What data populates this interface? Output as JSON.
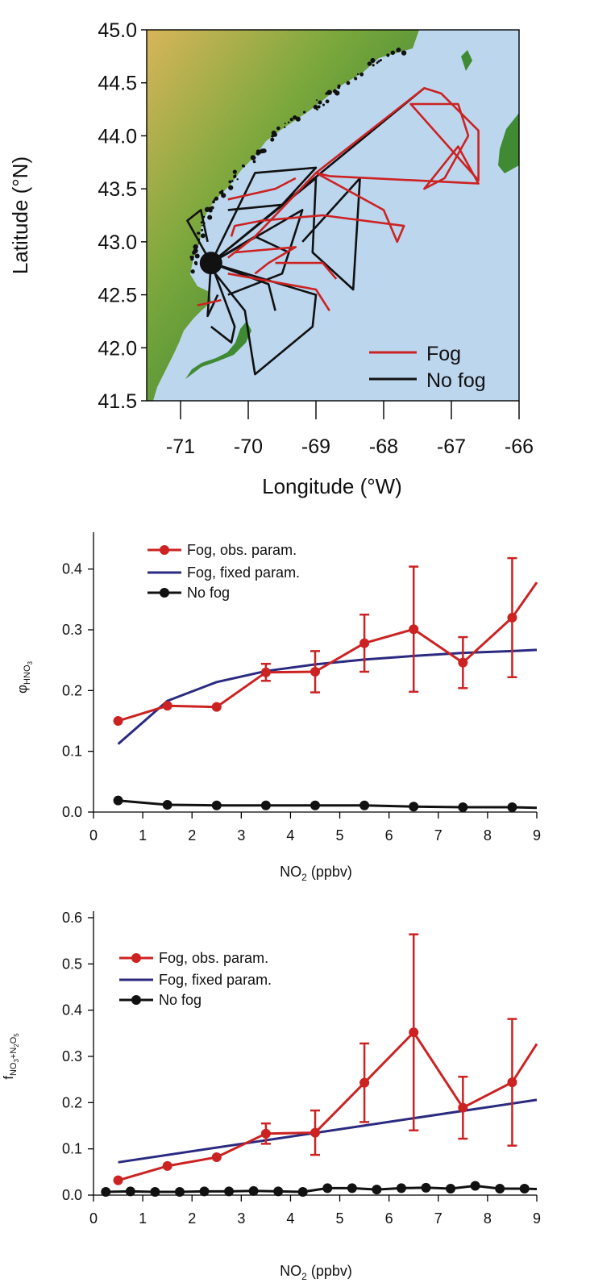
{
  "colors": {
    "fog": "#cc2222",
    "fog_fixed": "#2a2a80",
    "nofog": "#111111",
    "ocean": "#bcd6ee",
    "land_low": "#3f8a33",
    "land_mid": "#7da83d",
    "land_high": "#d8b55a"
  },
  "chart_data": [
    {
      "type": "map",
      "xlabel": "Longitude (°W)",
      "ylabel": "Latitude (°N)",
      "xlim": [
        -71.5,
        -66
      ],
      "ylim": [
        41.5,
        45.0
      ],
      "x_ticks": [
        "-71",
        "-70",
        "-69",
        "-68",
        "-67",
        "-66"
      ],
      "y_ticks": [
        "45.0",
        "44.5",
        "44.0",
        "43.5",
        "43.0",
        "42.5",
        "42.0",
        "41.5"
      ],
      "legend": {
        "placement": "bottom-right",
        "entries": [
          "Fog",
          "No fog"
        ]
      },
      "series": [
        {
          "name": "Fog",
          "tracks": [
            [
              [
                -69.0,
                43.65
              ],
              [
                -67.4,
                44.45
              ],
              [
                -67.15,
                44.4
              ],
              [
                -66.6,
                44.05
              ],
              [
                -66.6,
                43.58
              ],
              [
                -67.6,
                44.3
              ],
              [
                -66.9,
                44.3
              ],
              [
                -66.75,
                44.0
              ],
              [
                -67.1,
                43.6
              ],
              [
                -67.4,
                43.5
              ],
              [
                -66.9,
                43.9
              ],
              [
                -66.6,
                43.55
              ],
              [
                -68.8,
                43.62
              ],
              [
                -69.0,
                43.65
              ]
            ],
            [
              [
                -69.0,
                43.65
              ],
              [
                -68.0,
                43.3
              ],
              [
                -67.8,
                43.0
              ],
              [
                -67.7,
                43.15
              ],
              [
                -68.9,
                43.25
              ],
              [
                -69.8,
                43.2
              ],
              [
                -70.2,
                43.15
              ],
              [
                -70.25,
                43.05
              ]
            ],
            [
              [
                -69.0,
                43.65
              ],
              [
                -69.9,
                43.05
              ],
              [
                -70.3,
                42.85
              ]
            ],
            [
              [
                -70.2,
                42.9
              ],
              [
                -69.3,
                42.95
              ],
              [
                -69.7,
                42.8
              ],
              [
                -69.9,
                42.7
              ]
            ],
            [
              [
                -69.6,
                42.8
              ],
              [
                -68.9,
                42.8
              ],
              [
                -68.7,
                42.65
              ]
            ],
            [
              [
                -70.3,
                42.7
              ],
              [
                -69.0,
                42.55
              ],
              [
                -68.8,
                42.35
              ]
            ],
            [
              [
                -70.4,
                42.45
              ],
              [
                -70.75,
                42.4
              ]
            ],
            [
              [
                -70.3,
                43.4
              ],
              [
                -69.6,
                43.5
              ],
              [
                -69.3,
                43.6
              ]
            ]
          ]
        },
        {
          "name": "No fog",
          "tracks": [
            [
              [
                -70.55,
                42.8
              ],
              [
                -67.4,
                44.45
              ]
            ],
            [
              [
                -70.55,
                42.8
              ],
              [
                -69.9,
                43.65
              ],
              [
                -69.0,
                43.7
              ],
              [
                -69.5,
                43.35
              ],
              [
                -70.3,
                43.3
              ]
            ],
            [
              [
                -70.55,
                42.8
              ],
              [
                -69.0,
                43.6
              ],
              [
                -69.05,
                42.9
              ],
              [
                -68.45,
                42.55
              ],
              [
                -68.35,
                43.6
              ],
              [
                -69.2,
                43.0
              ]
            ],
            [
              [
                -70.55,
                42.8
              ],
              [
                -69.2,
                43.3
              ],
              [
                -69.5,
                42.7
              ],
              [
                -70.3,
                42.5
              ]
            ],
            [
              [
                -70.55,
                42.8
              ],
              [
                -69.0,
                42.5
              ],
              [
                -69.05,
                42.2
              ],
              [
                -69.9,
                41.75
              ],
              [
                -70.05,
                42.35
              ],
              [
                -70.55,
                42.75
              ]
            ],
            [
              [
                -70.55,
                42.8
              ],
              [
                -69.9,
                43.05
              ],
              [
                -69.4,
                42.9
              ]
            ],
            [
              [
                -70.55,
                42.8
              ],
              [
                -70.2,
                42.2
              ],
              [
                -70.25,
                42.05
              ],
              [
                -70.55,
                42.2
              ]
            ],
            [
              [
                -70.55,
                42.8
              ],
              [
                -70.9,
                43.2
              ],
              [
                -70.7,
                43.3
              ],
              [
                -70.6,
                43.0
              ]
            ],
            [
              [
                -70.55,
                42.8
              ],
              [
                -70.6,
                42.3
              ],
              [
                -70.45,
                42.5
              ]
            ],
            [
              [
                -70.55,
                42.8
              ],
              [
                -69.7,
                42.6
              ],
              [
                -69.6,
                42.35
              ]
            ]
          ]
        }
      ]
    },
    {
      "type": "line",
      "ylabel_symbol": "φ",
      "ylabel_sub": "HNO",
      "ylabel_sub2": "3",
      "xlabel": "NO",
      "xlabel_sub": "2",
      "xlabel_tail": " (ppbv)",
      "xlim": [
        0,
        9
      ],
      "ylim": [
        0,
        0.45
      ],
      "x_ticks": [
        "0",
        "1",
        "2",
        "3",
        "4",
        "5",
        "6",
        "7",
        "8",
        "9"
      ],
      "y_ticks": [
        "0.0",
        "0.1",
        "0.2",
        "0.3",
        "0.4"
      ],
      "legend": {
        "placement": "top-left",
        "entries": [
          "Fog, obs. param.",
          "Fog, fixed param.",
          "No fog"
        ]
      },
      "series": [
        {
          "name": "Fog, obs. param.",
          "x": [
            0.5,
            1.5,
            2.5,
            3.5,
            4.5,
            5.5,
            6.5,
            7.5,
            8.5,
            9.0
          ],
          "y": [
            0.15,
            0.175,
            0.173,
            0.23,
            0.231,
            0.278,
            0.301,
            0.246,
            0.32,
            0.378
          ],
          "err": [
            0,
            0,
            0,
            0.014,
            0.034,
            0.047,
            0.103,
            0.042,
            0.098,
            0
          ],
          "markers": [
            true,
            true,
            true,
            true,
            true,
            true,
            true,
            true,
            true,
            false
          ]
        },
        {
          "name": "Fog, fixed param.",
          "x": [
            0.5,
            1.5,
            2.5,
            3.5,
            4.5,
            5.5,
            6.5,
            7.5,
            8.5,
            9.0
          ],
          "y": [
            0.112,
            0.183,
            0.214,
            0.232,
            0.243,
            0.251,
            0.257,
            0.262,
            0.265,
            0.267
          ]
        },
        {
          "name": "No fog",
          "x": [
            0.5,
            1.5,
            2.5,
            3.5,
            4.5,
            5.5,
            6.5,
            7.5,
            8.5,
            9.0
          ],
          "y": [
            0.019,
            0.012,
            0.011,
            0.011,
            0.011,
            0.011,
            0.009,
            0.008,
            0.008,
            0.007
          ],
          "markers": [
            true,
            true,
            true,
            true,
            true,
            true,
            true,
            true,
            true,
            false
          ]
        }
      ]
    },
    {
      "type": "line",
      "ylabel_symbol": "f",
      "ylabel_sub": "NO",
      "ylabel_sub2": "3",
      "ylabel_sub3": "+N",
      "ylabel_sub4": "2",
      "ylabel_sub5": "O",
      "ylabel_sub6": "5",
      "xlabel": "NO",
      "xlabel_sub": "2",
      "xlabel_tail": " (ppbv)",
      "xlim": [
        0,
        9
      ],
      "ylim": [
        0,
        0.6
      ],
      "x_ticks": [
        "0",
        "1",
        "2",
        "3",
        "4",
        "5",
        "6",
        "7",
        "8",
        "9"
      ],
      "y_ticks": [
        "0.0",
        "0.1",
        "0.2",
        "0.3",
        "0.4",
        "0.5",
        "0.6"
      ],
      "legend": {
        "placement": "top-left",
        "entries": [
          "Fog, obs. param.",
          "Fog, fixed param.",
          "No fog"
        ]
      },
      "series": [
        {
          "name": "Fog, obs. param.",
          "x": [
            0.5,
            1.5,
            2.5,
            3.5,
            4.5,
            5.5,
            6.5,
            7.5,
            8.5,
            9.0
          ],
          "y": [
            0.032,
            0.063,
            0.082,
            0.133,
            0.135,
            0.243,
            0.352,
            0.189,
            0.244,
            0.327
          ],
          "err": [
            0,
            0,
            0,
            0.022,
            0.048,
            0.085,
            0.212,
            0.067,
            0.137,
            0
          ],
          "markers": [
            true,
            true,
            true,
            true,
            true,
            true,
            true,
            true,
            true,
            false
          ]
        },
        {
          "name": "Fog, fixed param.",
          "x": [
            0.5,
            9.0
          ],
          "y": [
            0.071,
            0.206
          ]
        },
        {
          "name": "No fog",
          "x": [
            0.25,
            0.75,
            1.25,
            1.75,
            2.25,
            2.75,
            3.25,
            3.75,
            4.25,
            4.75,
            5.25,
            5.75,
            6.25,
            6.75,
            7.25,
            7.75,
            8.25,
            8.75,
            9.0
          ],
          "y": [
            0.007,
            0.008,
            0.007,
            0.007,
            0.008,
            0.008,
            0.009,
            0.008,
            0.007,
            0.015,
            0.015,
            0.012,
            0.015,
            0.016,
            0.014,
            0.02,
            0.014,
            0.014,
            0.013
          ],
          "markers": [
            true,
            true,
            true,
            true,
            true,
            true,
            true,
            true,
            true,
            true,
            true,
            true,
            true,
            true,
            true,
            true,
            true,
            true,
            false
          ]
        }
      ]
    }
  ]
}
